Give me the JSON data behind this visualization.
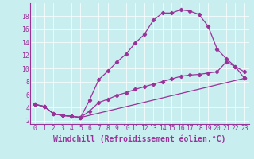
{
  "xlabel": "Windchill (Refroidissement éolien,°C)",
  "background_color": "#c8eef0",
  "line_color": "#993399",
  "xlim": [
    -0.5,
    23.5
  ],
  "ylim": [
    1.5,
    20.0
  ],
  "xticks": [
    0,
    1,
    2,
    3,
    4,
    5,
    6,
    7,
    8,
    9,
    10,
    11,
    12,
    13,
    14,
    15,
    16,
    17,
    18,
    19,
    20,
    21,
    22,
    23
  ],
  "yticks": [
    2,
    4,
    6,
    8,
    10,
    12,
    14,
    16,
    18
  ],
  "curve1_x": [
    0,
    1,
    2,
    3,
    4,
    5,
    6,
    7,
    8,
    9,
    10,
    11,
    12,
    13,
    14,
    15,
    16,
    17,
    18,
    19,
    20,
    21,
    22,
    23
  ],
  "curve1_y": [
    4.5,
    4.2,
    3.1,
    2.8,
    2.7,
    2.5,
    5.2,
    8.3,
    9.6,
    11.0,
    12.2,
    13.9,
    15.2,
    17.4,
    18.5,
    18.5,
    19.0,
    18.8,
    18.3,
    16.5,
    13.0,
    11.5,
    10.3,
    9.5
  ],
  "curve2_x": [
    0,
    1,
    2,
    3,
    4,
    5,
    23
  ],
  "curve2_y": [
    4.5,
    4.2,
    3.1,
    2.8,
    2.7,
    2.5,
    8.5
  ],
  "curve3_x": [
    0,
    1,
    2,
    3,
    4,
    5,
    6,
    7,
    8,
    9,
    10,
    11,
    12,
    13,
    14,
    15,
    16,
    17,
    18,
    19,
    20,
    21,
    22,
    23
  ],
  "curve3_y": [
    4.5,
    4.2,
    3.1,
    2.8,
    2.7,
    2.5,
    3.5,
    4.8,
    5.3,
    5.9,
    6.3,
    6.8,
    7.2,
    7.6,
    8.0,
    8.4,
    8.8,
    9.0,
    9.1,
    9.3,
    9.5,
    11.0,
    10.3,
    8.5
  ],
  "tick_fontsize": 5.8,
  "label_fontsize": 7.0,
  "grid_color": "#b0dde0",
  "spine_color": "#993399"
}
